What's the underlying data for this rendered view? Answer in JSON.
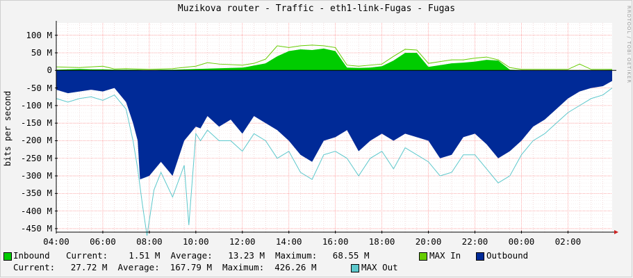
{
  "chart_data": {
    "type": "area",
    "title": "Muzikova router - Traffic - eth1-link-Fugas - Fugas",
    "ylabel": "bits per second",
    "watermark": "RRDTOOL / TOBI OETIKER",
    "ylim": [
      -460,
      135
    ],
    "yticks": [
      100,
      50,
      0,
      -50,
      -100,
      -150,
      -200,
      -250,
      -300,
      -350,
      -400,
      -450
    ],
    "ytick_labels": [
      "100 M",
      "50 M",
      "0",
      "-50 M",
      "-100 M",
      "-150 M",
      "-200 M",
      "-250 M",
      "-300 M",
      "-350 M",
      "-400 M",
      "-450 M"
    ],
    "x_unit": "hours since 04:00",
    "xlim": [
      0,
      23.9
    ],
    "xticks": [
      0,
      2,
      4,
      6,
      8,
      10,
      12,
      14,
      16,
      18,
      20,
      22
    ],
    "xtick_labels": [
      "04:00",
      "06:00",
      "08:00",
      "10:00",
      "12:00",
      "14:00",
      "16:00",
      "18:00",
      "20:00",
      "22:00",
      "00:00",
      "02:00"
    ],
    "grid": true,
    "colors": {
      "inbound": "#00cc00",
      "max_in": "#66cc00",
      "outbound": "#002a97",
      "max_out": "#5cc8cc",
      "background": "#ffffff",
      "gridline": "#ff9999"
    },
    "series": [
      {
        "name": "Inbound",
        "x": [
          0,
          0.5,
          1,
          1.5,
          2,
          2.5,
          3,
          3.5,
          4,
          4.5,
          5,
          5.5,
          6,
          6.5,
          7,
          7.5,
          8,
          8.2,
          8.5,
          9,
          9.5,
          10,
          10.5,
          11,
          11.5,
          12,
          12.5,
          13,
          13.5,
          14,
          14.5,
          15,
          15.5,
          16,
          16.5,
          17,
          17.5,
          18,
          18.5,
          19,
          19.5,
          20,
          20.5,
          21,
          21.5,
          22,
          22.5,
          23,
          23.5,
          23.9
        ],
        "values": [
          2,
          3,
          4,
          3,
          3,
          2,
          2,
          2,
          1,
          2,
          2,
          3,
          4,
          5,
          6,
          7,
          8,
          10,
          14,
          20,
          40,
          55,
          60,
          58,
          62,
          55,
          8,
          7,
          8,
          12,
          28,
          50,
          50,
          10,
          15,
          20,
          22,
          25,
          30,
          28,
          2,
          1,
          1,
          1,
          1,
          1,
          1,
          1,
          1,
          1.5
        ]
      },
      {
        "name": "MAX In",
        "x": [
          0,
          1,
          1.5,
          2,
          2.5,
          3,
          4,
          5,
          6,
          6.5,
          7,
          8,
          8.5,
          9,
          9.5,
          10,
          10.5,
          11,
          11.5,
          12,
          12.5,
          13,
          14,
          14.5,
          15,
          15.5,
          16,
          16.5,
          17,
          17.5,
          18,
          18.5,
          19,
          19.5,
          20,
          21,
          22,
          22.5,
          23,
          23.9
        ],
        "values": [
          10,
          8,
          10,
          12,
          4,
          5,
          3,
          5,
          12,
          22,
          18,
          15,
          20,
          32,
          70,
          65,
          70,
          72,
          70,
          65,
          15,
          12,
          18,
          40,
          60,
          58,
          20,
          25,
          30,
          30,
          35,
          38,
          30,
          8,
          3,
          3,
          3,
          18,
          3,
          3
        ]
      },
      {
        "name": "Outbound",
        "x": [
          0,
          0.5,
          1,
          1.5,
          2,
          2.5,
          3,
          3.3,
          3.5,
          3.6,
          4,
          4.5,
          5,
          5.5,
          6,
          6.2,
          6.5,
          7,
          7.5,
          8,
          8.5,
          9,
          9.5,
          10,
          10.5,
          11,
          11.5,
          12,
          12.5,
          13,
          13.5,
          14,
          14.5,
          15,
          15.5,
          16,
          16.5,
          17,
          17.5,
          18,
          18.5,
          19,
          19.5,
          20,
          20.5,
          21,
          21.5,
          22,
          22.5,
          23,
          23.5,
          23.9
        ],
        "values": [
          -55,
          -65,
          -60,
          -55,
          -60,
          -50,
          -90,
          -150,
          -200,
          -310,
          -300,
          -260,
          -300,
          -200,
          -160,
          -165,
          -130,
          -160,
          -140,
          -180,
          -130,
          -150,
          -170,
          -200,
          -240,
          -260,
          -200,
          -190,
          -170,
          -230,
          -200,
          -180,
          -200,
          -180,
          -190,
          -200,
          -250,
          -240,
          -190,
          -180,
          -210,
          -250,
          -230,
          -200,
          -160,
          -140,
          -110,
          -80,
          -60,
          -50,
          -45,
          -30
        ]
      },
      {
        "name": "MAX Out",
        "x": [
          0,
          0.5,
          1,
          1.5,
          2,
          2.5,
          3,
          3.3,
          3.5,
          3.7,
          3.9,
          4.2,
          4.5,
          5,
          5.5,
          5.7,
          6,
          6.2,
          6.5,
          7,
          7.5,
          8,
          8.5,
          9,
          9.5,
          10,
          10.5,
          11,
          11.5,
          12,
          12.5,
          13,
          13.5,
          14,
          14.5,
          15,
          15.5,
          16,
          16.5,
          17,
          17.5,
          18,
          18.5,
          19,
          19.5,
          20,
          20.5,
          21,
          21.5,
          22,
          22.5,
          23,
          23.5,
          23.9
        ],
        "values": [
          -80,
          -90,
          -80,
          -75,
          -85,
          -70,
          -110,
          -200,
          -280,
          -380,
          -470,
          -340,
          -290,
          -360,
          -270,
          -440,
          -180,
          -200,
          -170,
          -200,
          -200,
          -230,
          -180,
          -200,
          -250,
          -230,
          -290,
          -310,
          -240,
          -230,
          -250,
          -300,
          -250,
          -230,
          -280,
          -220,
          -240,
          -260,
          -300,
          -290,
          -240,
          -240,
          -280,
          -320,
          -300,
          -240,
          -200,
          -180,
          -150,
          -120,
          -100,
          -80,
          -70,
          -50
        ]
      }
    ],
    "legend": {
      "placement": "bottom",
      "inbound_label": "Inbound",
      "inbound_stats": "Current:    1.51 M  Average:   13.23 M  Maximum:   68.55 M",
      "max_in_label": "MAX In",
      "outbound_label": "Outbound",
      "outbound_stats": "Current:   27.72 M  Average:  167.79 M  Maximum:  426.26 M",
      "max_out_label": "MAX Out"
    }
  }
}
